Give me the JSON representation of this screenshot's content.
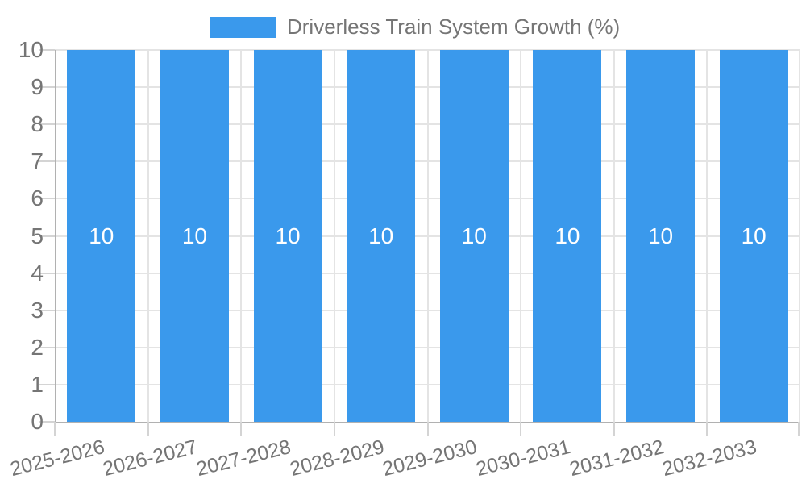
{
  "legend": {
    "label": "Driverless Train System Growth (%)"
  },
  "colors": {
    "bar": "#3a99ec",
    "grid": "#e4e4e4",
    "tick": "#d4d4d4",
    "axis": "#b1b1b1",
    "text": "#757575",
    "bar_label": "#ffffff",
    "background": "#ffffff"
  },
  "chart_data": {
    "type": "bar",
    "title": "Driverless Train System Growth (%)",
    "series_name": "Driverless Train System Growth (%)",
    "categories": [
      "2025-2026",
      "2026-2027",
      "2027-2028",
      "2028-2029",
      "2029-2030",
      "2030-2031",
      "2031-2032",
      "2032-2033"
    ],
    "values": [
      10,
      10,
      10,
      10,
      10,
      10,
      10,
      10
    ],
    "bar_value_labels": [
      "10",
      "10",
      "10",
      "10",
      "10",
      "10",
      "10",
      "10"
    ],
    "xlabel": "",
    "ylabel": "",
    "ylim": [
      0,
      10
    ],
    "yticks": [
      0,
      1,
      2,
      3,
      4,
      5,
      6,
      7,
      8,
      9,
      10
    ],
    "grid": true,
    "legend_position": "top",
    "x_label_rotation_deg": -14
  }
}
